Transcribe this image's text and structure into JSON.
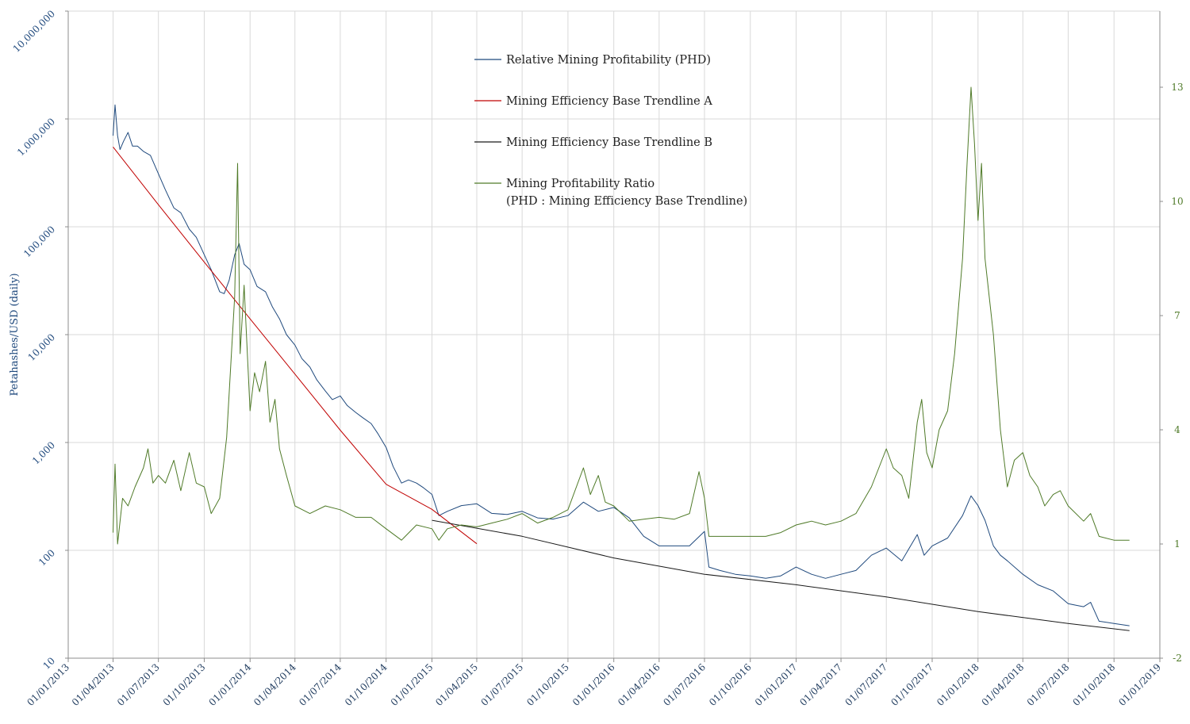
{
  "chart_data": {
    "type": "line",
    "ylabel_left": "Petahashes/USD (daily)",
    "y_left_scale": "log",
    "y_left_range": [
      10,
      10000000
    ],
    "y_left_ticks": [
      "10",
      "100",
      "1,000",
      "10,000",
      "100,000",
      "1,000,000",
      "10,000,000"
    ],
    "y_right_range": [
      -2,
      15
    ],
    "y_right_ticks": [
      "-2",
      "1",
      "4",
      "7",
      "10",
      "13"
    ],
    "x_range": [
      "2013-01-01",
      "2019-01-01"
    ],
    "x_ticks": [
      "01/01/2013",
      "01/04/2013",
      "01/07/2013",
      "01/10/2013",
      "01/01/2014",
      "01/04/2014",
      "01/07/2014",
      "01/10/2014",
      "01/01/2015",
      "01/04/2015",
      "01/07/2015",
      "01/10/2015",
      "01/01/2016",
      "01/04/2016",
      "01/07/2016",
      "01/10/2016",
      "01/01/2017",
      "01/04/2017",
      "01/07/2017",
      "01/10/2017",
      "01/01/2018",
      "01/04/2018",
      "01/07/2018",
      "01/10/2018",
      "01/01/2019"
    ],
    "grid": true,
    "legend_position": "top-center",
    "legend": [
      {
        "label": "Relative Mining Profitability (PHD)",
        "color": "#1f497d"
      },
      {
        "label": "Mining Efficiency Base Trendline A",
        "color": "#c00000"
      },
      {
        "label": "Mining Efficiency Base Trendline B",
        "color": "#1a1a1a"
      },
      {
        "label": "Mining Profitability Ratio",
        "label2": "(PHD : Mining Efficiency Base Trendline)",
        "color": "#4f7a28"
      }
    ],
    "series": [
      {
        "name": "Relative Mining Profitability (PHD)",
        "axis": "left",
        "color": "#1f497d",
        "points": [
          [
            "2013-04-01",
            700000
          ],
          [
            "2013-04-05",
            1350000
          ],
          [
            "2013-04-10",
            700000
          ],
          [
            "2013-04-15",
            520000
          ],
          [
            "2013-04-22",
            620000
          ],
          [
            "2013-05-01",
            750000
          ],
          [
            "2013-05-10",
            560000
          ],
          [
            "2013-05-20",
            560000
          ],
          [
            "2013-06-01",
            500000
          ],
          [
            "2013-06-15",
            460000
          ],
          [
            "2013-07-01",
            310000
          ],
          [
            "2013-07-15",
            220000
          ],
          [
            "2013-08-01",
            150000
          ],
          [
            "2013-08-15",
            135000
          ],
          [
            "2013-09-01",
            95000
          ],
          [
            "2013-09-15",
            80000
          ],
          [
            "2013-10-01",
            55000
          ],
          [
            "2013-10-15",
            40000
          ],
          [
            "2013-11-01",
            25000
          ],
          [
            "2013-11-10",
            24000
          ],
          [
            "2013-11-20",
            32000
          ],
          [
            "2013-12-01",
            55000
          ],
          [
            "2013-12-10",
            70000
          ],
          [
            "2013-12-20",
            45000
          ],
          [
            "2014-01-01",
            40000
          ],
          [
            "2014-01-15",
            28000
          ],
          [
            "2014-02-01",
            25000
          ],
          [
            "2014-02-15",
            18000
          ],
          [
            "2014-03-01",
            14000
          ],
          [
            "2014-03-15",
            10000
          ],
          [
            "2014-04-01",
            8000
          ],
          [
            "2014-04-15",
            6000
          ],
          [
            "2014-05-01",
            5000
          ],
          [
            "2014-05-15",
            3800
          ],
          [
            "2014-06-01",
            3000
          ],
          [
            "2014-06-15",
            2500
          ],
          [
            "2014-07-01",
            2700
          ],
          [
            "2014-07-15",
            2200
          ],
          [
            "2014-08-01",
            1900
          ],
          [
            "2014-08-15",
            1700
          ],
          [
            "2014-09-01",
            1500
          ],
          [
            "2014-09-15",
            1200
          ],
          [
            "2014-10-01",
            900
          ],
          [
            "2014-10-15",
            600
          ],
          [
            "2014-11-01",
            420
          ],
          [
            "2014-11-15",
            450
          ],
          [
            "2014-12-01",
            420
          ],
          [
            "2014-12-15",
            380
          ],
          [
            "2015-01-01",
            330
          ],
          [
            "2015-01-15",
            210
          ],
          [
            "2015-02-01",
            230
          ],
          [
            "2015-03-01",
            260
          ],
          [
            "2015-04-01",
            270
          ],
          [
            "2015-05-01",
            220
          ],
          [
            "2015-06-01",
            215
          ],
          [
            "2015-07-01",
            230
          ],
          [
            "2015-08-01",
            200
          ],
          [
            "2015-09-01",
            195
          ],
          [
            "2015-10-01",
            210
          ],
          [
            "2015-11-01",
            280
          ],
          [
            "2015-12-01",
            230
          ],
          [
            "2016-01-01",
            250
          ],
          [
            "2016-02-01",
            200
          ],
          [
            "2016-03-01",
            135
          ],
          [
            "2016-04-01",
            110
          ],
          [
            "2016-05-01",
            110
          ],
          [
            "2016-06-01",
            110
          ],
          [
            "2016-07-01",
            150
          ],
          [
            "2016-07-10",
            70
          ],
          [
            "2016-08-01",
            65
          ],
          [
            "2016-09-01",
            60
          ],
          [
            "2016-10-01",
            58
          ],
          [
            "2016-11-01",
            55
          ],
          [
            "2016-12-01",
            58
          ],
          [
            "2017-01-01",
            70
          ],
          [
            "2017-02-01",
            60
          ],
          [
            "2017-03-01",
            55
          ],
          [
            "2017-04-01",
            60
          ],
          [
            "2017-05-01",
            65
          ],
          [
            "2017-06-01",
            90
          ],
          [
            "2017-07-01",
            105
          ],
          [
            "2017-08-01",
            80
          ],
          [
            "2017-09-01",
            140
          ],
          [
            "2017-09-15",
            90
          ],
          [
            "2017-10-01",
            110
          ],
          [
            "2017-11-01",
            130
          ],
          [
            "2017-12-01",
            210
          ],
          [
            "2017-12-18",
            320
          ],
          [
            "2018-01-01",
            260
          ],
          [
            "2018-01-15",
            190
          ],
          [
            "2018-02-01",
            110
          ],
          [
            "2018-02-15",
            90
          ],
          [
            "2018-03-01",
            80
          ],
          [
            "2018-04-01",
            60
          ],
          [
            "2018-05-01",
            48
          ],
          [
            "2018-06-01",
            42
          ],
          [
            "2018-07-01",
            32
          ],
          [
            "2018-08-01",
            30
          ],
          [
            "2018-08-15",
            33
          ],
          [
            "2018-09-01",
            22
          ],
          [
            "2018-10-01",
            21
          ],
          [
            "2018-11-01",
            20
          ]
        ]
      },
      {
        "name": "Mining Efficiency Base Trendline A",
        "axis": "left",
        "color": "#c00000",
        "points": [
          [
            "2013-04-01",
            550000
          ],
          [
            "2013-07-01",
            160000
          ],
          [
            "2013-10-01",
            47000
          ],
          [
            "2014-01-01",
            14000
          ],
          [
            "2014-04-01",
            4300
          ],
          [
            "2014-07-01",
            1300
          ],
          [
            "2014-10-01",
            410
          ],
          [
            "2015-01-01",
            240
          ],
          [
            "2015-04-01",
            115
          ]
        ]
      },
      {
        "name": "Mining Efficiency Base Trendline B",
        "axis": "left",
        "color": "#1a1a1a",
        "points": [
          [
            "2015-01-01",
            190
          ],
          [
            "2015-07-01",
            135
          ],
          [
            "2016-01-01",
            85
          ],
          [
            "2016-07-01",
            60
          ],
          [
            "2017-01-01",
            48
          ],
          [
            "2017-07-01",
            37
          ],
          [
            "2018-01-01",
            27
          ],
          [
            "2018-07-01",
            21
          ],
          [
            "2018-11-01",
            18
          ]
        ]
      },
      {
        "name": "Mining Profitability Ratio",
        "axis": "right",
        "color": "#4f7a28",
        "points": [
          [
            "2013-04-01",
            1.3
          ],
          [
            "2013-04-05",
            3.1
          ],
          [
            "2013-04-10",
            1.0
          ],
          [
            "2013-04-20",
            2.2
          ],
          [
            "2013-05-01",
            2.0
          ],
          [
            "2013-05-15",
            2.5
          ],
          [
            "2013-06-01",
            3.0
          ],
          [
            "2013-06-10",
            3.5
          ],
          [
            "2013-06-20",
            2.6
          ],
          [
            "2013-07-01",
            2.8
          ],
          [
            "2013-07-15",
            2.6
          ],
          [
            "2013-08-01",
            3.2
          ],
          [
            "2013-08-15",
            2.4
          ],
          [
            "2013-09-01",
            3.4
          ],
          [
            "2013-09-15",
            2.6
          ],
          [
            "2013-10-01",
            2.5
          ],
          [
            "2013-10-15",
            1.8
          ],
          [
            "2013-11-01",
            2.2
          ],
          [
            "2013-11-15",
            3.8
          ],
          [
            "2013-12-01",
            7.5
          ],
          [
            "2013-12-07",
            11.0
          ],
          [
            "2013-12-12",
            6.0
          ],
          [
            "2013-12-20",
            7.8
          ],
          [
            "2014-01-01",
            4.5
          ],
          [
            "2014-01-10",
            5.5
          ],
          [
            "2014-01-20",
            5.0
          ],
          [
            "2014-02-01",
            5.8
          ],
          [
            "2014-02-10",
            4.2
          ],
          [
            "2014-02-20",
            4.8
          ],
          [
            "2014-03-01",
            3.5
          ],
          [
            "2014-03-15",
            2.8
          ],
          [
            "2014-04-01",
            2.0
          ],
          [
            "2014-05-01",
            1.8
          ],
          [
            "2014-06-01",
            2.0
          ],
          [
            "2014-07-01",
            1.9
          ],
          [
            "2014-08-01",
            1.7
          ],
          [
            "2014-09-01",
            1.7
          ],
          [
            "2014-10-01",
            1.4
          ],
          [
            "2014-11-01",
            1.1
          ],
          [
            "2014-12-01",
            1.5
          ],
          [
            "2015-01-01",
            1.4
          ],
          [
            "2015-01-15",
            1.1
          ],
          [
            "2015-02-01",
            1.4
          ],
          [
            "2015-03-01",
            1.5
          ],
          [
            "2015-04-01",
            1.45
          ],
          [
            "2015-05-01",
            1.55
          ],
          [
            "2015-06-01",
            1.65
          ],
          [
            "2015-07-01",
            1.8
          ],
          [
            "2015-08-01",
            1.55
          ],
          [
            "2015-09-01",
            1.7
          ],
          [
            "2015-10-01",
            1.9
          ],
          [
            "2015-11-01",
            3.0
          ],
          [
            "2015-11-15",
            2.3
          ],
          [
            "2015-12-01",
            2.8
          ],
          [
            "2015-12-15",
            2.1
          ],
          [
            "2016-01-01",
            2.0
          ],
          [
            "2016-02-01",
            1.6
          ],
          [
            "2016-03-01",
            1.65
          ],
          [
            "2016-04-01",
            1.7
          ],
          [
            "2016-05-01",
            1.65
          ],
          [
            "2016-06-01",
            1.8
          ],
          [
            "2016-06-20",
            2.9
          ],
          [
            "2016-07-01",
            2.2
          ],
          [
            "2016-07-10",
            1.2
          ],
          [
            "2016-08-01",
            1.2
          ],
          [
            "2016-09-01",
            1.2
          ],
          [
            "2016-10-01",
            1.2
          ],
          [
            "2016-11-01",
            1.2
          ],
          [
            "2016-12-01",
            1.3
          ],
          [
            "2017-01-01",
            1.5
          ],
          [
            "2017-02-01",
            1.6
          ],
          [
            "2017-03-01",
            1.5
          ],
          [
            "2017-04-01",
            1.6
          ],
          [
            "2017-05-01",
            1.8
          ],
          [
            "2017-06-01",
            2.5
          ],
          [
            "2017-07-01",
            3.5
          ],
          [
            "2017-07-15",
            3.0
          ],
          [
            "2017-08-01",
            2.8
          ],
          [
            "2017-08-15",
            2.2
          ],
          [
            "2017-09-01",
            4.2
          ],
          [
            "2017-09-10",
            4.8
          ],
          [
            "2017-09-20",
            3.4
          ],
          [
            "2017-10-01",
            3.0
          ],
          [
            "2017-10-15",
            4.0
          ],
          [
            "2017-11-01",
            4.5
          ],
          [
            "2017-11-15",
            6.0
          ],
          [
            "2017-12-01",
            8.5
          ],
          [
            "2017-12-10",
            11.0
          ],
          [
            "2017-12-18",
            13.0
          ],
          [
            "2017-12-25",
            11.5
          ],
          [
            "2018-01-01",
            9.5
          ],
          [
            "2018-01-08",
            11.0
          ],
          [
            "2018-01-15",
            8.5
          ],
          [
            "2018-02-01",
            6.5
          ],
          [
            "2018-02-15",
            4.0
          ],
          [
            "2018-03-01",
            2.5
          ],
          [
            "2018-03-15",
            3.2
          ],
          [
            "2018-04-01",
            3.4
          ],
          [
            "2018-04-15",
            2.8
          ],
          [
            "2018-05-01",
            2.5
          ],
          [
            "2018-05-15",
            2.0
          ],
          [
            "2018-06-01",
            2.3
          ],
          [
            "2018-06-15",
            2.4
          ],
          [
            "2018-07-01",
            2.0
          ],
          [
            "2018-08-01",
            1.6
          ],
          [
            "2018-08-15",
            1.8
          ],
          [
            "2018-09-01",
            1.2
          ],
          [
            "2018-10-01",
            1.1
          ],
          [
            "2018-11-01",
            1.1
          ]
        ]
      }
    ]
  }
}
